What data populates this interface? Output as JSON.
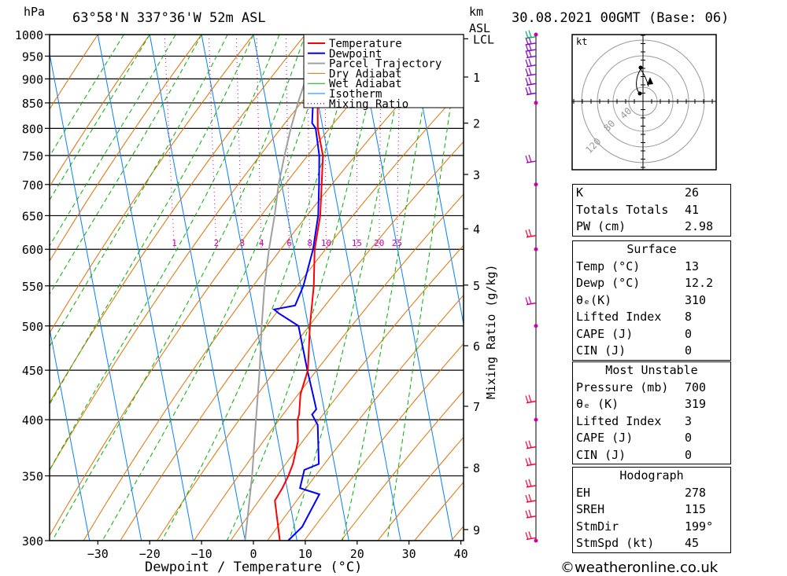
{
  "header": {
    "pressure_unit": "hPa",
    "location": "63°58'N  337°36'W  52m  ASL",
    "height_unit_line1": "km",
    "height_unit_line2": "ASL",
    "datetime": "30.08.2021  00GMT  (Base: 06)"
  },
  "chart_data": {
    "type": "line",
    "title": "63°58'N  337°36'W  52m  ASL",
    "xlabel": "Dewpoint / Temperature (°C)",
    "ylabel": "hPa",
    "xlim": [
      -40,
      40
    ],
    "ylim": [
      1000,
      300
    ],
    "x_ticks": [
      -30,
      -20,
      -10,
      0,
      10,
      20,
      30,
      40
    ],
    "pressure_ticks": [
      300,
      350,
      400,
      450,
      500,
      550,
      600,
      650,
      700,
      750,
      800,
      850,
      900,
      950,
      1000
    ],
    "height_ticks_km": [
      "9",
      "8",
      "7",
      "6",
      "5",
      "4",
      "3",
      "2",
      "1",
      "LCL"
    ],
    "mixing_ratio_axis_label": "Mixing Ratio (g/kg)",
    "mixing_ratio_labels": [
      "1",
      "2",
      "3",
      "4",
      "6",
      "8",
      "10",
      "15",
      "20",
      "25"
    ],
    "legend": [
      "Temperature",
      "Dewpoint",
      "Parcel Trajectory",
      "Dry Adiabat",
      "Wet Adiabat",
      "Isotherm",
      "Mixing Ratio"
    ],
    "legend_position": "top-right",
    "series": [
      {
        "name": "Temperature",
        "color": "#ff0000",
        "points": [
          [
            1000,
            12.6
          ],
          [
            950,
            12.1
          ],
          [
            900,
            10.9
          ],
          [
            850,
            9.9
          ],
          [
            800,
            9.0
          ],
          [
            750,
            9.0
          ],
          [
            700,
            7.7
          ],
          [
            650,
            6.3
          ],
          [
            600,
            4.0
          ],
          [
            550,
            2.5
          ],
          [
            500,
            0.3
          ],
          [
            450,
            -1.7
          ],
          [
            425,
            -4.0
          ],
          [
            405,
            -5.0
          ],
          [
            400,
            -5.5
          ],
          [
            380,
            -6.2
          ],
          [
            360,
            -8.0
          ],
          [
            350,
            -9.3
          ],
          [
            340,
            -10.9
          ],
          [
            330,
            -12.8
          ],
          [
            300,
            -13.3
          ]
        ]
      },
      {
        "name": "Dewpoint",
        "color": "#0000ff",
        "points": [
          [
            1000,
            12.2
          ],
          [
            950,
            11.3
          ],
          [
            900,
            10.1
          ],
          [
            850,
            9.0
          ],
          [
            810,
            8.1
          ],
          [
            800,
            8.6
          ],
          [
            750,
            8.3
          ],
          [
            700,
            7.2
          ],
          [
            650,
            5.9
          ],
          [
            600,
            3.7
          ],
          [
            550,
            0.5
          ],
          [
            525,
            -1.8
          ],
          [
            520,
            -6.0
          ],
          [
            515,
            -5.2
          ],
          [
            500,
            -1.9
          ],
          [
            450,
            -1.8
          ],
          [
            425,
            -1.6
          ],
          [
            410,
            -1.5
          ],
          [
            405,
            -2.5
          ],
          [
            395,
            -1.8
          ],
          [
            360,
            -3.0
          ],
          [
            355,
            -6.0
          ],
          [
            340,
            -7.5
          ],
          [
            335,
            -4.0
          ],
          [
            310,
            -8.5
          ],
          [
            300,
            -11.7
          ]
        ]
      },
      {
        "name": "Parcel Trajectory",
        "color": "#a0a0a0",
        "points": [
          [
            1000,
            12.6
          ],
          [
            950,
            10.6
          ],
          [
            900,
            8.5
          ],
          [
            850,
            6.1
          ],
          [
            800,
            3.8
          ],
          [
            750,
            1.6
          ],
          [
            700,
            -0.6
          ],
          [
            650,
            -2.5
          ],
          [
            600,
            -4.8
          ],
          [
            550,
            -7.0
          ],
          [
            500,
            -9.0
          ],
          [
            450,
            -11.0
          ],
          [
            400,
            -13.5
          ],
          [
            350,
            -16.3
          ],
          [
            300,
            -20.0
          ]
        ]
      }
    ]
  },
  "table": {
    "k_label": "K",
    "k_value": "26",
    "tt_label": "Totals Totals",
    "tt_value": "41",
    "pw_label": "PW (cm)",
    "pw_value": "2.98",
    "surface_title": "Surface",
    "temp_label": "Temp (°C)",
    "temp_value": "13",
    "dewp_label": "Dewp (°C)",
    "dewp_value": "12.2",
    "thetae_label": "θₑ(K)",
    "thetae_value": "310",
    "li_label": "Lifted Index",
    "li_value": "8",
    "cape_label": "CAPE (J)",
    "cape_value": "0",
    "cin_label": "CIN (J)",
    "cin_value": "0",
    "mu_title": "Most Unstable",
    "mu_pressure_label": "Pressure (mb)",
    "mu_pressure_value": "700",
    "mu_thetae_label": "θₑ (K)",
    "mu_thetae_value": "319",
    "mu_li_label": "Lifted Index",
    "mu_li_value": "3",
    "mu_cape_label": "CAPE (J)",
    "mu_cape_value": "0",
    "mu_cin_label": "CIN (J)",
    "mu_cin_value": "0",
    "hodo_title": "Hodograph",
    "eh_label": "EH",
    "eh_value": "278",
    "sreh_label": "SREH",
    "sreh_value": "115",
    "stmdir_label": "StmDir",
    "stmdir_value": "199°",
    "stmspd_label": "StmSpd (kt)",
    "stmspd_value": "45"
  },
  "hodograph": {
    "unit_label": "kt",
    "ring_labels": [
      "40",
      "80",
      "120"
    ]
  },
  "footer": {
    "copyright": "©weatheronline.co.uk"
  }
}
